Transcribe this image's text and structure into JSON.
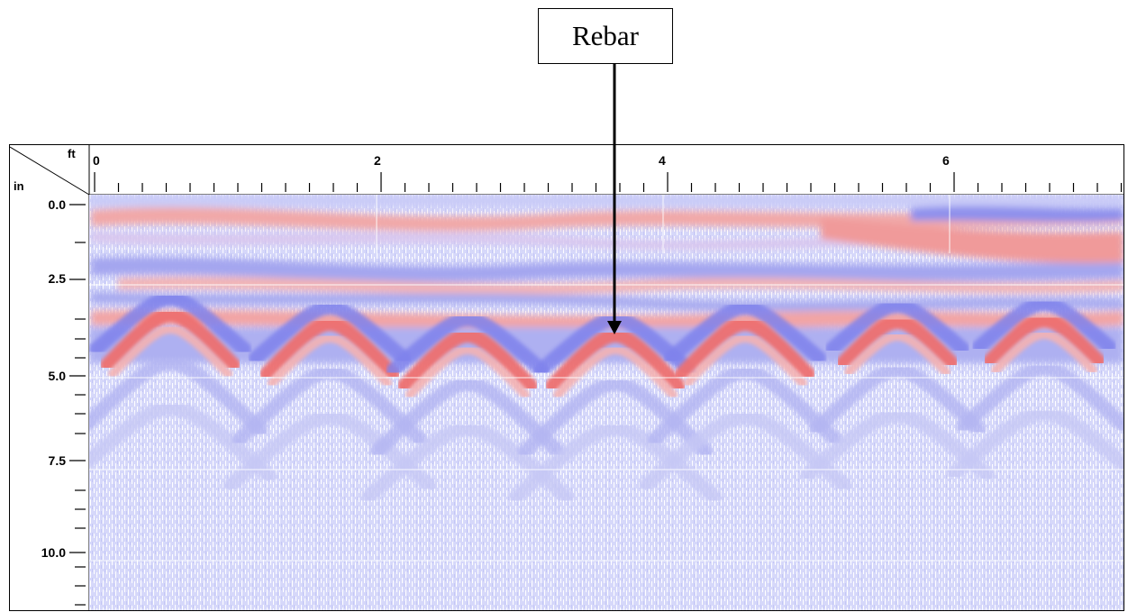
{
  "annotation": {
    "label": "Rebar"
  },
  "scan": {
    "horizontal_unit": "ft",
    "vertical_unit": "in",
    "horizontal_ticks": [
      "0",
      "2",
      "4",
      "6"
    ],
    "depth_ticks": [
      "0.0",
      "2.5",
      "5.0",
      "7.5",
      "10.0"
    ],
    "colors": {
      "positive": "#f07070",
      "negative": "#7070f0",
      "background": "#ffffff"
    }
  }
}
